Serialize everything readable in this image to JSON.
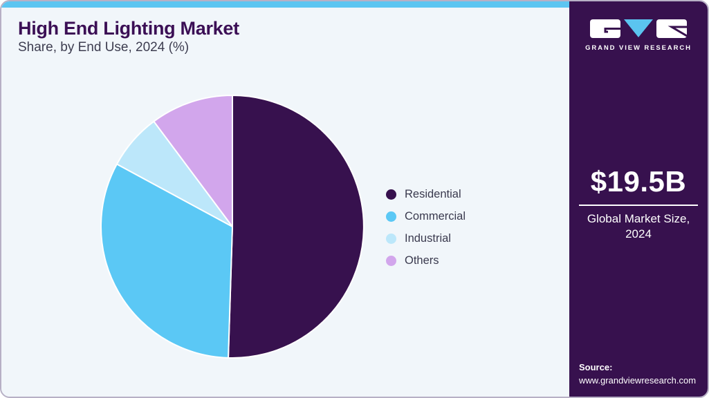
{
  "header": {
    "title": "High End Lighting Market",
    "subtitle": "Share, by End Use, 2024 (%)"
  },
  "chart_data": {
    "type": "pie",
    "title": "High End Lighting Market Share, by End Use, 2024 (%)",
    "categories": [
      "Residential",
      "Commercial",
      "Industrial",
      "Others"
    ],
    "values": [
      50.5,
      32.4,
      6.9,
      10.2
    ],
    "unit": "%",
    "colors": [
      "#37114e",
      "#5bc8f5",
      "#bce7fa",
      "#d2a6ec"
    ],
    "legend_position": "right",
    "start_angle_deg": 0,
    "direction": "clockwise",
    "slice_stroke": "#ffffff",
    "data_labels": false
  },
  "sidebar": {
    "brand": "GRAND VIEW RESEARCH",
    "market_size_value": "$19.5B",
    "market_size_label": "Global Market Size, 2024",
    "source_label": "Source:",
    "source_url": "www.grandviewresearch.com",
    "background": "#37114e",
    "logo_accent": "#5bc4f0"
  },
  "theme": {
    "top_bar": "#5cc5f1",
    "content_bg": "#f1f6fa",
    "card_border": "#b7b0c5",
    "title_color": "#3b0f55",
    "subtitle_color": "#3d3d50",
    "legend_text_color": "#3a3a4e"
  }
}
